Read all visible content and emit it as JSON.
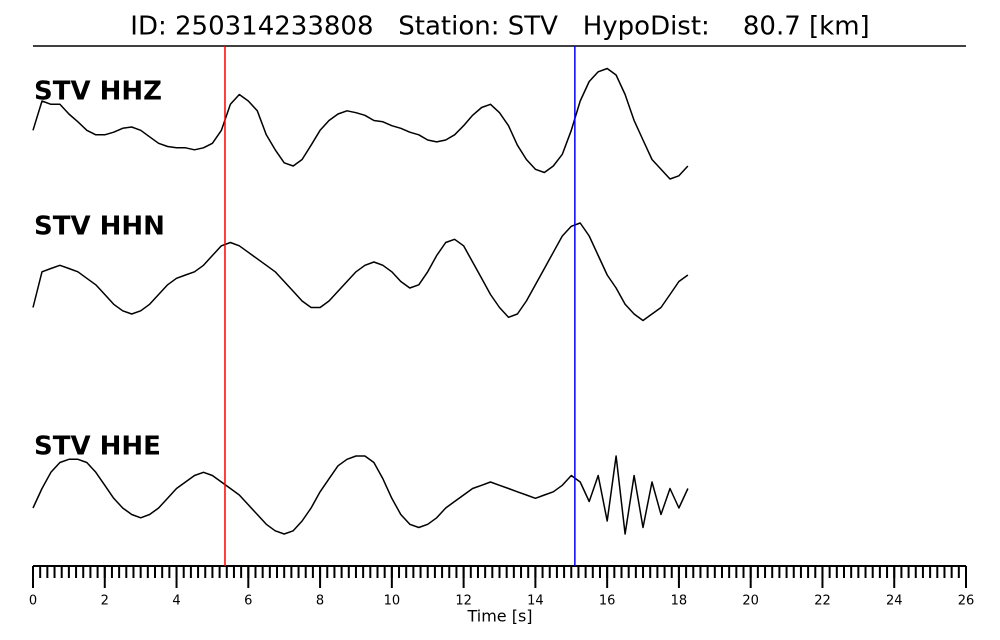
{
  "chart_data": {
    "type": "line",
    "title": "ID: 250314233808   Station: STV   HypoDist:    80.7 [km]",
    "xlabel": "Time [s]",
    "xlim": [
      0,
      26
    ],
    "xticks": [
      0,
      2,
      4,
      6,
      8,
      10,
      12,
      14,
      16,
      18,
      20,
      22,
      24,
      26
    ],
    "x_minor_tick_step": 0.2,
    "ylim": [
      -1,
      1
    ],
    "label_color": "#4c9a00",
    "vlines": [
      {
        "x": 5.35,
        "color": "#ff0000"
      },
      {
        "x": 15.1,
        "color": "#0000ff"
      }
    ],
    "x": [
      0,
      0.25,
      0.5,
      0.75,
      1,
      1.25,
      1.5,
      1.75,
      2,
      2.25,
      2.5,
      2.75,
      3,
      3.25,
      3.5,
      3.75,
      4,
      4.25,
      4.5,
      4.75,
      5,
      5.25,
      5.5,
      5.75,
      6,
      6.25,
      6.5,
      6.75,
      7,
      7.25,
      7.5,
      7.75,
      8,
      8.25,
      8.5,
      8.75,
      9,
      9.25,
      9.5,
      9.75,
      10,
      10.25,
      10.5,
      10.75,
      11,
      11.25,
      11.5,
      11.75,
      12,
      12.25,
      12.5,
      12.75,
      13,
      13.25,
      13.5,
      13.75,
      14,
      14.25,
      14.5,
      14.75,
      15,
      15.25,
      15.5,
      15.75,
      16,
      16.25,
      16.5,
      16.75,
      17,
      17.25,
      17.5,
      17.75,
      18,
      18.25
    ],
    "series": [
      {
        "name": "STV HHZ",
        "color": "#000000",
        "values": [
          0.15,
          0.6,
          0.55,
          0.55,
          0.4,
          0.28,
          0.15,
          0.08,
          0.08,
          0.12,
          0.18,
          0.2,
          0.15,
          0.05,
          -0.05,
          -0.1,
          -0.12,
          -0.12,
          -0.15,
          -0.12,
          -0.05,
          0.15,
          0.55,
          0.7,
          0.6,
          0.45,
          0.08,
          -0.15,
          -0.35,
          -0.4,
          -0.3,
          -0.08,
          0.15,
          0.3,
          0.4,
          0.45,
          0.42,
          0.38,
          0.3,
          0.28,
          0.22,
          0.18,
          0.12,
          0.08,
          0,
          -0.03,
          0,
          0.08,
          0.22,
          0.38,
          0.5,
          0.55,
          0.42,
          0.22,
          -0.08,
          -0.3,
          -0.45,
          -0.5,
          -0.4,
          -0.22,
          0.15,
          0.6,
          0.9,
          1.05,
          1.1,
          1.0,
          0.7,
          0.3,
          0,
          -0.3,
          -0.45,
          -0.6,
          -0.55,
          -0.4
        ]
      },
      {
        "name": "STV HHN",
        "color": "#000000",
        "values": [
          -0.5,
          0.05,
          0.1,
          0.15,
          0.1,
          0.05,
          -0.05,
          -0.15,
          -0.3,
          -0.45,
          -0.55,
          -0.6,
          -0.55,
          -0.45,
          -0.3,
          -0.15,
          -0.05,
          0,
          0.05,
          0.15,
          0.3,
          0.45,
          0.5,
          0.45,
          0.35,
          0.25,
          0.15,
          0.05,
          -0.1,
          -0.25,
          -0.4,
          -0.5,
          -0.5,
          -0.4,
          -0.25,
          -0.1,
          0.05,
          0.15,
          0.2,
          0.15,
          0.05,
          -0.1,
          -0.2,
          -0.15,
          0.05,
          0.3,
          0.5,
          0.55,
          0.45,
          0.2,
          -0.05,
          -0.3,
          -0.5,
          -0.65,
          -0.6,
          -0.4,
          -0.15,
          0.1,
          0.35,
          0.6,
          0.75,
          0.8,
          0.6,
          0.3,
          0,
          -0.2,
          -0.45,
          -0.6,
          -0.7,
          -0.6,
          -0.5,
          -0.3,
          -0.1,
          0
        ]
      },
      {
        "name": "STV HHE",
        "color": "#000000",
        "values": [
          -0.2,
          0.1,
          0.35,
          0.5,
          0.55,
          0.55,
          0.5,
          0.35,
          0.15,
          -0.05,
          -0.2,
          -0.3,
          -0.35,
          -0.3,
          -0.2,
          -0.05,
          0.1,
          0.2,
          0.3,
          0.35,
          0.3,
          0.2,
          0.1,
          0,
          -0.15,
          -0.3,
          -0.45,
          -0.55,
          -0.6,
          -0.55,
          -0.4,
          -0.2,
          0.05,
          0.25,
          0.45,
          0.55,
          0.6,
          0.6,
          0.5,
          0.25,
          -0.05,
          -0.3,
          -0.45,
          -0.5,
          -0.45,
          -0.35,
          -0.2,
          -0.1,
          0,
          0.1,
          0.15,
          0.2,
          0.15,
          0.1,
          0.05,
          0,
          -0.05,
          0,
          0.05,
          0.15,
          0.3,
          0.2,
          -0.1,
          0.3,
          -0.4,
          0.6,
          -0.6,
          0.3,
          -0.5,
          0.2,
          -0.3,
          0.1,
          -0.2,
          0.1
        ]
      }
    ]
  }
}
